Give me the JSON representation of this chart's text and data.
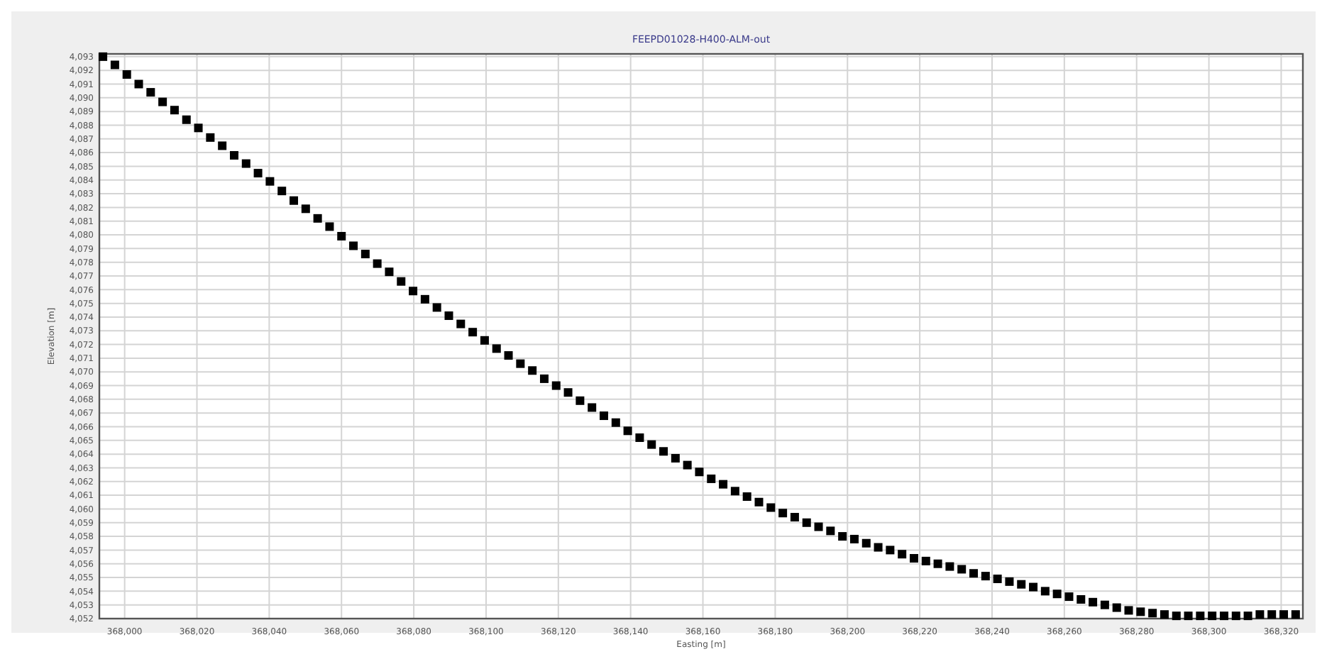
{
  "chart_data": {
    "type": "scatter",
    "title": "FEEPD01028-H400-ALM-out",
    "xlabel": "Easting [m]",
    "ylabel": "Elevation [m]",
    "marker": "square",
    "grid": true,
    "color": "#000000",
    "xlim": [
      367993,
      368326
    ],
    "ylim": [
      4052,
      4093.2
    ],
    "xticks": [
      {
        "value": 368000,
        "label": "368,000"
      },
      {
        "value": 368020,
        "label": "368,020"
      },
      {
        "value": 368040,
        "label": "368,040"
      },
      {
        "value": 368060,
        "label": "368,060"
      },
      {
        "value": 368080,
        "label": "368,080"
      },
      {
        "value": 368100,
        "label": "368,100"
      },
      {
        "value": 368120,
        "label": "368,120"
      },
      {
        "value": 368140,
        "label": "368,140"
      },
      {
        "value": 368160,
        "label": "368,160"
      },
      {
        "value": 368180,
        "label": "368,180"
      },
      {
        "value": 368200,
        "label": "368,200"
      },
      {
        "value": 368220,
        "label": "368,220"
      },
      {
        "value": 368240,
        "label": "368,240"
      },
      {
        "value": 368260,
        "label": "368,260"
      },
      {
        "value": 368280,
        "label": "368,280"
      },
      {
        "value": 368300,
        "label": "368,300"
      },
      {
        "value": 368320,
        "label": "368,320"
      }
    ],
    "yticks": [
      {
        "value": 4052,
        "label": "4,052"
      },
      {
        "value": 4053,
        "label": "4,053"
      },
      {
        "value": 4054,
        "label": "4,054"
      },
      {
        "value": 4055,
        "label": "4,055"
      },
      {
        "value": 4056,
        "label": "4,056"
      },
      {
        "value": 4057,
        "label": "4,057"
      },
      {
        "value": 4058,
        "label": "4,058"
      },
      {
        "value": 4059,
        "label": "4,059"
      },
      {
        "value": 4060,
        "label": "4,060"
      },
      {
        "value": 4061,
        "label": "4,061"
      },
      {
        "value": 4062,
        "label": "4,062"
      },
      {
        "value": 4063,
        "label": "4,063"
      },
      {
        "value": 4064,
        "label": "4,064"
      },
      {
        "value": 4065,
        "label": "4,065"
      },
      {
        "value": 4066,
        "label": "4,066"
      },
      {
        "value": 4067,
        "label": "4,067"
      },
      {
        "value": 4068,
        "label": "4,068"
      },
      {
        "value": 4069,
        "label": "4,069"
      },
      {
        "value": 4070,
        "label": "4,070"
      },
      {
        "value": 4071,
        "label": "4,071"
      },
      {
        "value": 4072,
        "label": "4,072"
      },
      {
        "value": 4073,
        "label": "4,073"
      },
      {
        "value": 4074,
        "label": "4,074"
      },
      {
        "value": 4075,
        "label": "4,075"
      },
      {
        "value": 4076,
        "label": "4,076"
      },
      {
        "value": 4077,
        "label": "4,077"
      },
      {
        "value": 4078,
        "label": "4,078"
      },
      {
        "value": 4079,
        "label": "4,079"
      },
      {
        "value": 4080,
        "label": "4,080"
      },
      {
        "value": 4081,
        "label": "4,081"
      },
      {
        "value": 4082,
        "label": "4,082"
      },
      {
        "value": 4083,
        "label": "4,083"
      },
      {
        "value": 4084,
        "label": "4,084"
      },
      {
        "value": 4085,
        "label": "4,085"
      },
      {
        "value": 4086,
        "label": "4,086"
      },
      {
        "value": 4087,
        "label": "4,087"
      },
      {
        "value": 4088,
        "label": "4,088"
      },
      {
        "value": 4089,
        "label": "4,089"
      },
      {
        "value": 4090,
        "label": "4,090"
      },
      {
        "value": 4091,
        "label": "4,091"
      },
      {
        "value": 4092,
        "label": "4,092"
      },
      {
        "value": 4093,
        "label": "4,093"
      }
    ],
    "x": [
      367994,
      367997.3,
      368000.6,
      368003.9,
      368007.2,
      368010.5,
      368013.8,
      368017.1,
      368020.4,
      368023.7,
      368027,
      368030.3,
      368033.6,
      368036.9,
      368040.2,
      368043.5,
      368046.8,
      368050.1,
      368053.4,
      368056.7,
      368060,
      368063.3,
      368066.6,
      368069.9,
      368073.2,
      368076.5,
      368079.8,
      368083.1,
      368086.4,
      368089.7,
      368093,
      368096.3,
      368099.6,
      368102.9,
      368106.2,
      368109.5,
      368112.8,
      368116.1,
      368119.4,
      368122.7,
      368126,
      368129.3,
      368132.6,
      368135.9,
      368139.2,
      368142.5,
      368145.8,
      368149.1,
      368152.4,
      368155.7,
      368159,
      368162.3,
      368165.6,
      368168.9,
      368172.2,
      368175.5,
      368178.8,
      368182.1,
      368185.4,
      368188.7,
      368192,
      368195.3,
      368198.6,
      368201.9,
      368205.2,
      368208.5,
      368211.8,
      368215.1,
      368218.4,
      368221.7,
      368225,
      368228.3,
      368231.6,
      368234.9,
      368238.2,
      368241.5,
      368244.8,
      368248.1,
      368251.4,
      368254.7,
      368258,
      368261.3,
      368264.6,
      368267.9,
      368271.2,
      368274.5,
      368277.8,
      368281.1,
      368284.4,
      368287.7,
      368291,
      368294.3,
      368297.6,
      368300.9,
      368304.2,
      368307.5,
      368310.8,
      368314.1,
      368317.4,
      368320.7,
      368324
    ],
    "values": [
      4093.0,
      4092.4,
      4091.7,
      4091.0,
      4090.4,
      4089.7,
      4089.1,
      4088.4,
      4087.8,
      4087.1,
      4086.5,
      4085.8,
      4085.2,
      4084.5,
      4083.9,
      4083.2,
      4082.5,
      4081.9,
      4081.2,
      4080.6,
      4079.9,
      4079.2,
      4078.6,
      4077.9,
      4077.3,
      4076.6,
      4075.9,
      4075.3,
      4074.7,
      4074.1,
      4073.5,
      4072.9,
      4072.3,
      4071.7,
      4071.2,
      4070.6,
      4070.1,
      4069.5,
      4069.0,
      4068.5,
      4067.9,
      4067.4,
      4066.8,
      4066.3,
      4065.7,
      4065.2,
      4064.7,
      4064.2,
      4063.7,
      4063.2,
      4062.7,
      4062.2,
      4061.8,
      4061.3,
      4060.9,
      4060.5,
      4060.1,
      4059.7,
      4059.4,
      4059.0,
      4058.7,
      4058.4,
      4058.0,
      4057.8,
      4057.5,
      4057.2,
      4057.0,
      4056.7,
      4056.4,
      4056.2,
      4056.0,
      4055.8,
      4055.6,
      4055.3,
      4055.1,
      4054.9,
      4054.7,
      4054.5,
      4054.3,
      4054.0,
      4053.8,
      4053.6,
      4053.4,
      4053.2,
      4053.0,
      4052.8,
      4052.6,
      4052.5,
      4052.4,
      4052.3,
      4052.2,
      4052.2,
      4052.2,
      4052.2,
      4052.2,
      4052.2,
      4052.2,
      4052.3,
      4052.3,
      4052.3,
      4052.3
    ]
  }
}
